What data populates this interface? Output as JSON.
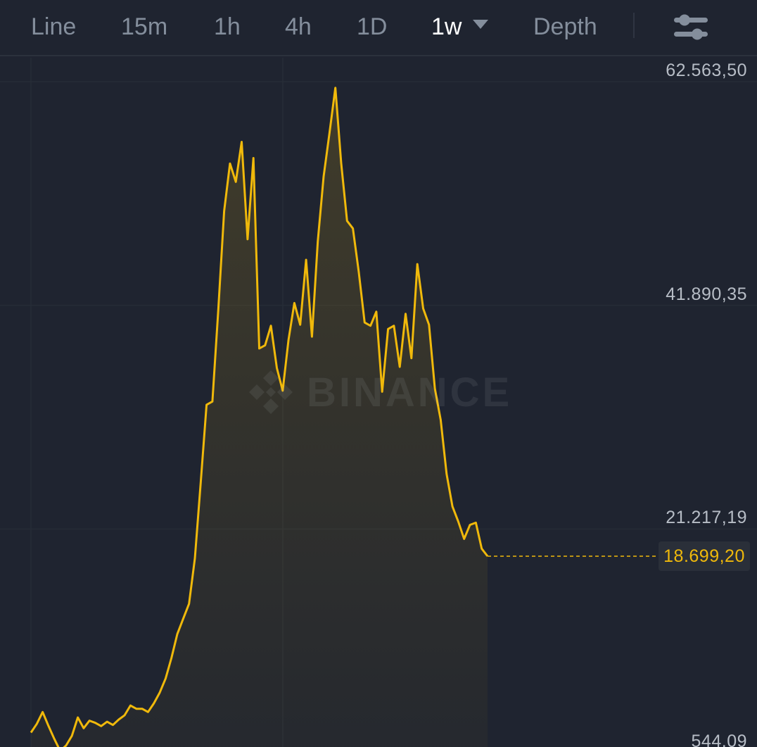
{
  "toolbar": {
    "tabs": [
      {
        "label": "Line",
        "active": false
      },
      {
        "label": "15m",
        "active": false
      },
      {
        "label": "1h",
        "active": false
      },
      {
        "label": "4h",
        "active": false
      },
      {
        "label": "1D",
        "active": false
      },
      {
        "label": "1w",
        "active": true
      },
      {
        "label": "Depth",
        "active": false
      }
    ],
    "settings_icon": "sliders-icon"
  },
  "watermark": {
    "brand": "BINANCE"
  },
  "current_price": {
    "label": "18.699,20",
    "value": 18699.2
  },
  "colors": {
    "background": "#1f2430",
    "line": "#f0b90b",
    "axis_text": "#b7bdc6",
    "inactive_tab": "#848e9c"
  },
  "chart_data": {
    "type": "line",
    "interval": "1w",
    "title": "",
    "xlabel": "",
    "ylabel": "",
    "ylim": [
      544.09,
      62563.5
    ],
    "y_ticks": [
      {
        "label": "62.563,50",
        "value": 62563.5
      },
      {
        "label": "41.890,35",
        "value": 41890.35
      },
      {
        "label": "21.217,19",
        "value": 21217.19
      },
      {
        "label": "544,09",
        "value": 544.09
      }
    ],
    "grid": true,
    "series": [
      {
        "values": [
          2400,
          3200,
          4300,
          3000,
          1800,
          700,
          1200,
          2100,
          3800,
          2800,
          3500,
          3300,
          3000,
          3400,
          3100,
          3600,
          4000,
          4900,
          4600,
          4600,
          4300,
          5100,
          6100,
          7400,
          9300,
          11500,
          12900,
          14300,
          18500,
          25500,
          32700,
          33000,
          41500,
          50600,
          55000,
          53300,
          57000,
          48000,
          55500,
          37900,
          38200,
          40000,
          36100,
          34000,
          38700,
          42100,
          40100,
          46100,
          39000,
          47800,
          53800,
          57800,
          62000,
          55000,
          49700,
          49000,
          45000,
          40300,
          40000,
          41300,
          33900,
          39700,
          40000,
          36200,
          41100,
          37000,
          45700,
          41600,
          40100,
          34200,
          31300,
          26300,
          23300,
          21900,
          20300,
          21600,
          21800,
          19400,
          18700
        ]
      }
    ]
  }
}
